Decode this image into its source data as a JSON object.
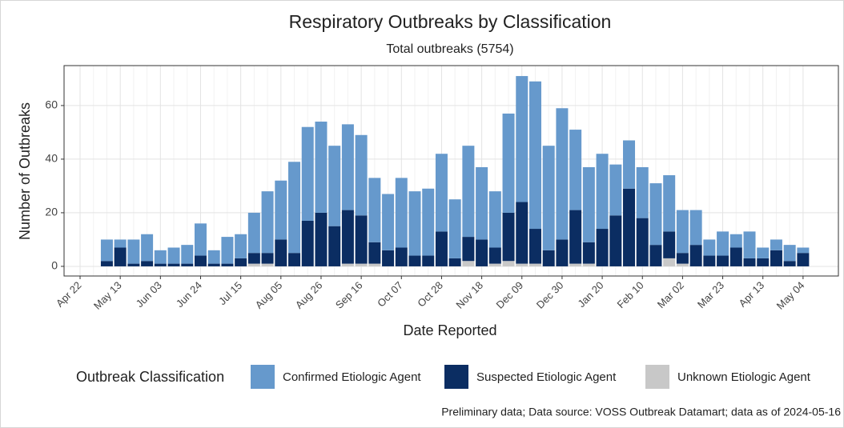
{
  "chart_data": {
    "type": "stacked_bar",
    "title": "Respiratory Outbreaks by Classification",
    "subtitle": "Total outbreaks (5754)",
    "x_label": "Date Reported",
    "y_label": "Number of Outbreaks",
    "legend_title": "Outbreak Classification",
    "caption": "Preliminary data; Data source: VOSS Outbreak Datamart; data as of 2024-05-16",
    "categories": [
      "Apr 22",
      null,
      null,
      "May 13",
      null,
      null,
      "Jun 03",
      null,
      null,
      "Jun 24",
      null,
      null,
      "Jul 15",
      null,
      null,
      "Aug 05",
      null,
      null,
      "Aug 26",
      null,
      null,
      "Sep 16",
      null,
      null,
      "Oct 07",
      null,
      null,
      "Oct 28",
      null,
      null,
      "Nov 18",
      null,
      null,
      "Dec 09",
      null,
      null,
      "Dec 30",
      null,
      null,
      "Jan 20",
      null,
      null,
      "Feb 10",
      null,
      null,
      "Mar 02",
      null,
      null,
      "Mar 23",
      null,
      null,
      "Apr 13",
      null,
      null,
      "May 04"
    ],
    "series": [
      {
        "name": "Unknown Etiologic Agent",
        "color": "#c8c8c8",
        "values": [
          null,
          null,
          0,
          0,
          0,
          0,
          0,
          0,
          0,
          0,
          0,
          0,
          0,
          1,
          1,
          0,
          0,
          0,
          0,
          0,
          1,
          1,
          1,
          0,
          0,
          0,
          0,
          0,
          0,
          2,
          0,
          1,
          2,
          1,
          1,
          0,
          0,
          1,
          1,
          0,
          0,
          0,
          0,
          0,
          3,
          1,
          0,
          0,
          0,
          0,
          0,
          0,
          0,
          0,
          0
        ]
      },
      {
        "name": "Suspected Etiologic Agent",
        "color": "#0b2d62",
        "values": [
          null,
          null,
          2,
          7,
          1,
          2,
          1,
          1,
          1,
          4,
          1,
          1,
          3,
          4,
          4,
          10,
          5,
          17,
          20,
          15,
          20,
          18,
          8,
          6,
          7,
          4,
          4,
          13,
          3,
          9,
          10,
          6,
          18,
          23,
          13,
          6,
          10,
          20,
          8,
          14,
          19,
          29,
          18,
          8,
          10,
          4,
          8,
          4,
          4,
          7,
          3,
          3,
          6,
          2,
          5
        ]
      },
      {
        "name": "Confirmed Etiologic Agent",
        "color": "#6699cc",
        "values": [
          null,
          null,
          8,
          3,
          9,
          10,
          5,
          6,
          7,
          12,
          5,
          10,
          9,
          15,
          23,
          22,
          34,
          35,
          34,
          30,
          32,
          30,
          24,
          21,
          26,
          24,
          25,
          29,
          22,
          34,
          27,
          21,
          37,
          47,
          55,
          39,
          49,
          30,
          28,
          28,
          19,
          18,
          19,
          23,
          21,
          16,
          13,
          6,
          9,
          5,
          10,
          4,
          4,
          6,
          2
        ]
      }
    ],
    "legend_order": [
      2,
      1,
      0
    ],
    "ylim": [
      -3.6,
      74.9
    ],
    "yticks": [
      0,
      20,
      40,
      60
    ],
    "grid": true
  }
}
